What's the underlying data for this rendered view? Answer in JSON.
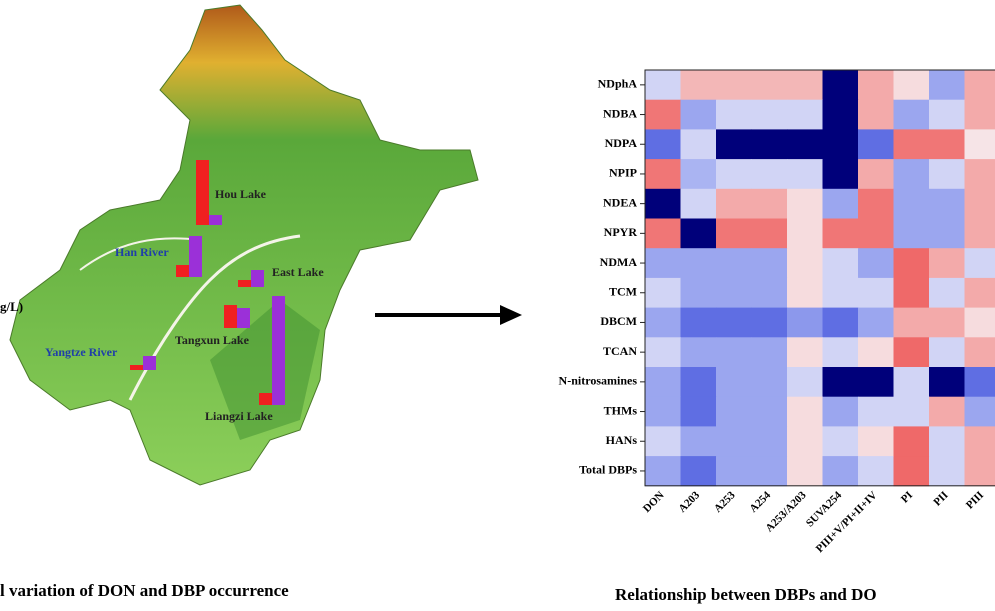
{
  "map": {
    "type": "bar",
    "unit_label": "g/L)",
    "caption": "l variation of DON and DBP occurrence",
    "series_colors": [
      "#f02020",
      "#9b30d8"
    ],
    "sites": [
      {
        "name": "Hou Lake",
        "label_color": "#222222",
        "values": [
          65,
          10
        ]
      },
      {
        "name": "Han River",
        "label_color": "#1f3fa8",
        "values": [
          12,
          41
        ]
      },
      {
        "name": "East Lake",
        "label_color": "#222222",
        "values": [
          7,
          17
        ]
      },
      {
        "name": "Tangxun Lake",
        "label_color": "#222222",
        "values": [
          23,
          20
        ]
      },
      {
        "name": "Liangzi Lake",
        "label_color": "#222222",
        "values": [
          12,
          109
        ]
      },
      {
        "name": "Yangtze River",
        "label_color": "#1f3fa8",
        "values": [
          5,
          14
        ]
      }
    ]
  },
  "heatmap": {
    "type": "heatmap",
    "caption": "Relationship between DBPs and DO",
    "rows": [
      "NDphA",
      "NDBA",
      "NDPA",
      "NPIP",
      "NDEA",
      "NPYR",
      "NDMA",
      "TCM",
      "DBCM",
      "TCAN",
      "N-nitrosamines",
      "THMs",
      "HANs",
      "Total DBPs"
    ],
    "columns": [
      "DON",
      "A203",
      "A253",
      "A254",
      "A253/A203",
      "SUVA254",
      "PIII+V/PI+II+IV",
      "PI",
      "PII",
      "PIII"
    ],
    "values": [
      [
        -0.15,
        0.35,
        0.35,
        0.35,
        0.35,
        -1,
        0.4,
        0.15,
        -0.35,
        0.4
      ],
      [
        0.6,
        -0.35,
        -0.15,
        -0.15,
        -0.15,
        -1,
        0.4,
        -0.35,
        -0.15,
        0.4
      ],
      [
        -0.55,
        -0.15,
        -1,
        -1,
        -1,
        -1,
        -0.55,
        0.6,
        0.6,
        0.1
      ],
      [
        0.6,
        -0.3,
        -0.15,
        -0.15,
        -0.15,
        -1,
        0.4,
        -0.35,
        -0.15,
        0.4
      ],
      [
        -1,
        -0.15,
        0.4,
        0.4,
        0.15,
        -0.35,
        0.6,
        -0.35,
        -0.35,
        0.4
      ],
      [
        0.6,
        -1,
        0.6,
        0.6,
        0.15,
        0.6,
        0.6,
        -0.35,
        -0.35,
        0.4
      ],
      [
        -0.35,
        -0.35,
        -0.35,
        -0.35,
        0.15,
        -0.15,
        -0.35,
        0.65,
        0.4,
        -0.15
      ],
      [
        -0.15,
        -0.35,
        -0.35,
        -0.35,
        0.15,
        -0.15,
        -0.15,
        0.65,
        -0.15,
        0.4
      ],
      [
        -0.35,
        -0.55,
        -0.55,
        -0.55,
        -0.4,
        -0.55,
        -0.35,
        0.4,
        0.4,
        0.15
      ],
      [
        -0.15,
        -0.35,
        -0.35,
        -0.35,
        0.15,
        -0.15,
        0.15,
        0.65,
        -0.15,
        0.4
      ],
      [
        -0.35,
        -0.55,
        -0.35,
        -0.35,
        -0.15,
        -1,
        -1,
        -0.15,
        -1,
        -0.55
      ],
      [
        -0.35,
        -0.55,
        -0.35,
        -0.35,
        0.15,
        -0.35,
        -0.15,
        -0.15,
        0.4,
        -0.35
      ],
      [
        -0.15,
        -0.35,
        -0.35,
        -0.35,
        0.15,
        -0.15,
        0.15,
        0.65,
        -0.15,
        0.4
      ],
      [
        -0.35,
        -0.55,
        -0.35,
        -0.35,
        0.15,
        -0.35,
        -0.15,
        0.65,
        -0.15,
        0.4
      ]
    ]
  }
}
